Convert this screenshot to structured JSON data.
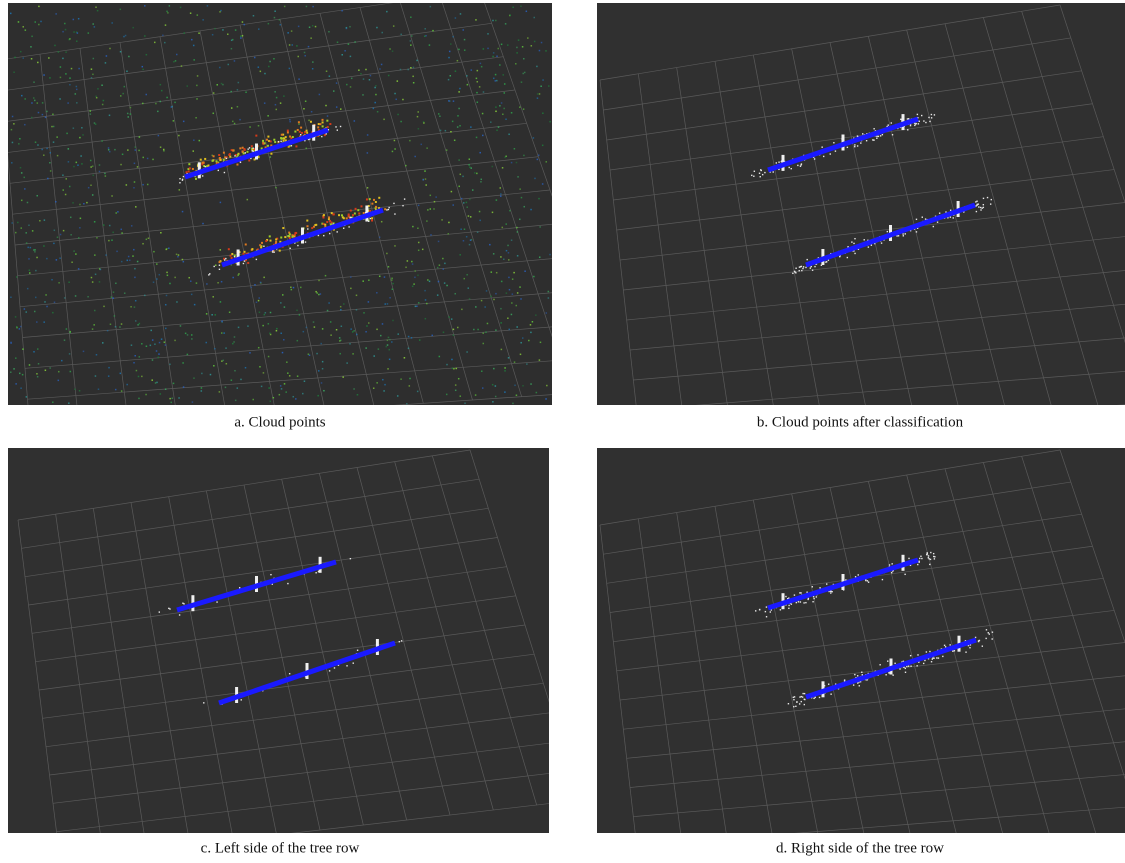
{
  "panels": [
    {
      "caption": "a. Cloud points"
    },
    {
      "caption": "b. Cloud points after classification"
    },
    {
      "caption": "c. Left side of the tree row"
    },
    {
      "caption": "d. Right side of the tree row"
    }
  ]
}
